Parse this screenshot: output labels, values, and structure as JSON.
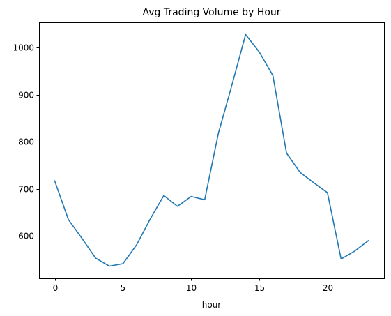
{
  "chart_data": {
    "type": "line",
    "title": "Avg Trading Volume by Hour",
    "xlabel": "hour",
    "ylabel": "",
    "x": [
      0,
      1,
      2,
      3,
      4,
      5,
      6,
      7,
      8,
      9,
      10,
      11,
      12,
      13,
      14,
      15,
      16,
      17,
      18,
      19,
      20,
      21,
      22,
      23
    ],
    "series": [
      {
        "color": "#1f77b4",
        "values": [
          717,
          635,
          595,
          553,
          536,
          541,
          581,
          636,
          686,
          663,
          684,
          677,
          818,
          921,
          1028,
          991,
          941,
          776,
          735,
          713,
          692,
          551,
          568,
          590
        ]
      }
    ],
    "xlim": [
      -1.15,
      24.15
    ],
    "ylim": [
      510,
      1054
    ],
    "xticks": [
      0,
      5,
      10,
      15,
      20
    ],
    "yticks": [
      600,
      700,
      800,
      900,
      1000
    ],
    "grid": false,
    "legend": false
  }
}
